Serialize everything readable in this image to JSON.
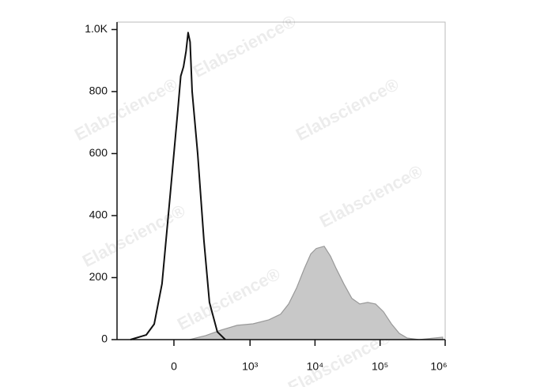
{
  "chart_data": {
    "type": "histogram-overlay",
    "watermark": "Elabscience®",
    "xscale": "biexponential",
    "xlim": [
      -500,
      1000000
    ],
    "xticks": [
      0,
      {
        "value": 1000,
        "label": "10³"
      },
      {
        "value": 10000,
        "label": "10⁴"
      },
      {
        "value": 100000,
        "label": "10⁵"
      },
      {
        "value": 1000000,
        "label": "10⁶"
      }
    ],
    "ylim": [
      0,
      1024
    ],
    "yticks": [
      0,
      200,
      400,
      600,
      800,
      {
        "value": 1000,
        "label": "1.0K"
      }
    ],
    "series": [
      {
        "color": "#c8c8c8",
        "filled": true,
        "x": [
          80,
          186,
          351,
          630,
          1112,
          1950,
          2965,
          3930,
          5200,
          6880,
          8600,
          10460,
          13840,
          17330,
          21080,
          27880,
          36860,
          48690,
          64460,
          85270,
          112900,
          149200,
          197300,
          261100,
          397500,
          915000
        ],
        "values": [
          0,
          13,
          31,
          46,
          51,
          64,
          82,
          115,
          166,
          230,
          276,
          294,
          301,
          269,
          230,
          179,
          133,
          115,
          120,
          115,
          90,
          51,
          20,
          5,
          0,
          8
        ]
      },
      {
        "color": "#111111",
        "filled": false,
        "x": [
          -302,
          -156,
          -103,
          -59,
          -19,
          19,
          33,
          47,
          60,
          71,
          82,
          94,
          128,
          173,
          220,
          302,
          408
        ],
        "values": [
          0,
          15,
          50,
          180,
          460,
          740,
          850,
          880,
          930,
          990,
          960,
          800,
          600,
          320,
          120,
          25,
          0
        ]
      }
    ]
  }
}
